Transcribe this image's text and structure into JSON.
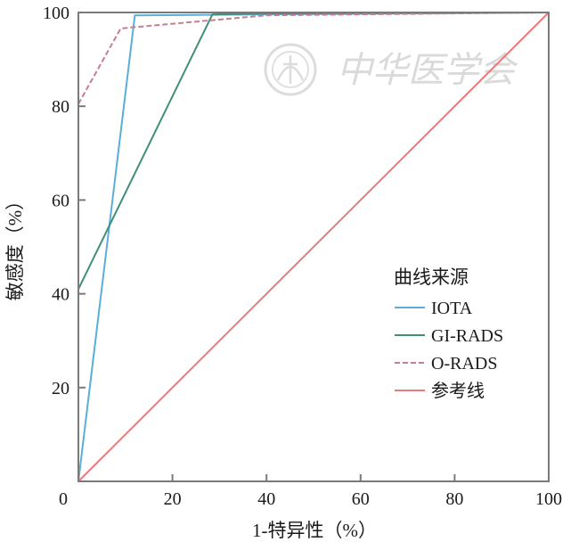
{
  "chart_data": {
    "type": "line",
    "title": "",
    "xlabel": "1-特异性（%）",
    "ylabel": "敏感度（%）",
    "xlim": [
      0,
      100
    ],
    "ylim": [
      0,
      100
    ],
    "x_ticks": [
      "0",
      "20",
      "40",
      "60",
      "80",
      "100"
    ],
    "y_ticks": [
      "20",
      "40",
      "60",
      "80",
      "100"
    ],
    "grid": false,
    "legend": {
      "title": "曲线来源",
      "position": "right-middle",
      "entries": [
        "IOTA",
        "GI-RADS",
        "O-RADS",
        "参考线"
      ]
    },
    "series": [
      {
        "name": "IOTA",
        "color": "#5aaed8",
        "dash": "solid",
        "x": [
          0,
          12,
          100
        ],
        "y": [
          0,
          99.4,
          100
        ]
      },
      {
        "name": "GI-RADS",
        "color": "#3f8f7a",
        "dash": "solid",
        "x": [
          0,
          28.5,
          40,
          100
        ],
        "y": [
          41,
          99.6,
          99.8,
          100
        ]
      },
      {
        "name": "O-RADS",
        "color": "#c47f90",
        "dash": "dashed",
        "x": [
          0,
          9,
          40,
          100
        ],
        "y": [
          80.5,
          96.6,
          99.4,
          100
        ]
      },
      {
        "name": "参考线",
        "color": "#e87a7a",
        "dash": "solid",
        "x": [
          0,
          100
        ],
        "y": [
          0,
          100
        ]
      }
    ]
  },
  "watermark": {
    "text": "中华医学会",
    "emblem_icon": "cma-seal-icon"
  }
}
